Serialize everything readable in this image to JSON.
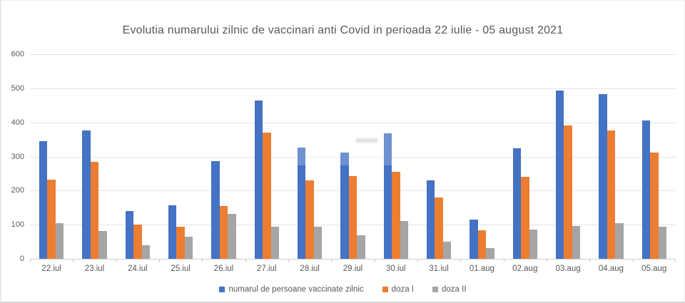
{
  "chart_data": {
    "type": "bar",
    "title": "Evolutia numarului zilnic de vaccinari anti Covid in perioada 22 iulie - 05 august 2021",
    "categories": [
      "22.iul",
      "23.iul",
      "24.iul",
      "25.iul",
      "26.iul",
      "27.iul",
      "28.iul",
      "29.iul",
      "30.iul",
      "31.iul",
      "01.aug",
      "02.aug",
      "03.aug",
      "04.aug",
      "05.aug"
    ],
    "series": [
      {
        "name": "numarul de persoane vaccinate zilnic",
        "color": "#4472C4",
        "values": [
          345,
          377,
          141,
          156,
          286,
          465,
          326,
          312,
          367,
          230,
          115,
          325,
          493,
          484,
          406
        ]
      },
      {
        "name": "doza I",
        "color": "#ED7D31",
        "values": [
          232,
          285,
          101,
          94,
          155,
          370,
          231,
          242,
          255,
          179,
          84,
          240,
          391,
          377,
          311
        ]
      },
      {
        "name": "doza II",
        "color": "#A5A5A5",
        "values": [
          104,
          81,
          40,
          65,
          131,
          95,
          95,
          70,
          110,
          51,
          32,
          85,
          96,
          105,
          94
        ]
      }
    ],
    "xlabel": "",
    "ylabel": "",
    "ylim": [
      0,
      600
    ],
    "yticks": [
      0,
      100,
      200,
      300,
      400,
      500,
      600
    ],
    "grid": true,
    "legend_position": "bottom"
  },
  "style": {
    "text_color": "#595959",
    "gridline_color": "#E4E4E4",
    "axis_color": "#CFCFCF",
    "background": "#FFFFFF"
  }
}
